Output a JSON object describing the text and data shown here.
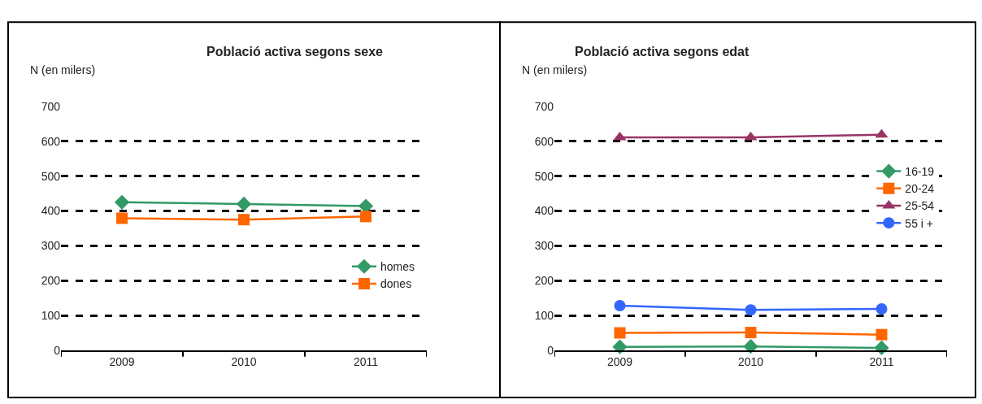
{
  "chart_data": [
    {
      "type": "line",
      "title": "Població activa segons sexe",
      "ylabel": "N (en milers)",
      "categories": [
        "2009",
        "2010",
        "2011"
      ],
      "series": [
        {
          "name": "homes",
          "color": "#339966",
          "marker": "diamond",
          "values": [
            425,
            420,
            414
          ]
        },
        {
          "name": "dones",
          "color": "#ff6600",
          "marker": "square",
          "values": [
            379,
            375,
            384
          ]
        }
      ],
      "ylim": [
        0,
        700
      ],
      "yticks": [
        0,
        100,
        200,
        300,
        400,
        500,
        600,
        700
      ],
      "grid": "y",
      "legend": "right",
      "line_style": "solid"
    },
    {
      "type": "line",
      "title": "Població activa segons edat",
      "ylabel": "N (en milers)",
      "categories": [
        "2009",
        "2010",
        "2011"
      ],
      "series": [
        {
          "name": "16-19",
          "color": "#339966",
          "marker": "diamond",
          "values": [
            10,
            11,
            7
          ]
        },
        {
          "name": "20-24",
          "color": "#ff6600",
          "marker": "square",
          "values": [
            50,
            51,
            45
          ]
        },
        {
          "name": "25-54",
          "color": "#993366",
          "marker": "triangle",
          "values": [
            611,
            611,
            619
          ]
        },
        {
          "name": "55 i +",
          "color": "#3366ff",
          "marker": "circle",
          "values": [
            128,
            116,
            119
          ]
        }
      ],
      "ylim": [
        0,
        700
      ],
      "yticks": [
        0,
        100,
        200,
        300,
        400,
        500,
        600,
        700
      ],
      "grid": "y",
      "legend": "right",
      "line_style": "solid"
    }
  ]
}
